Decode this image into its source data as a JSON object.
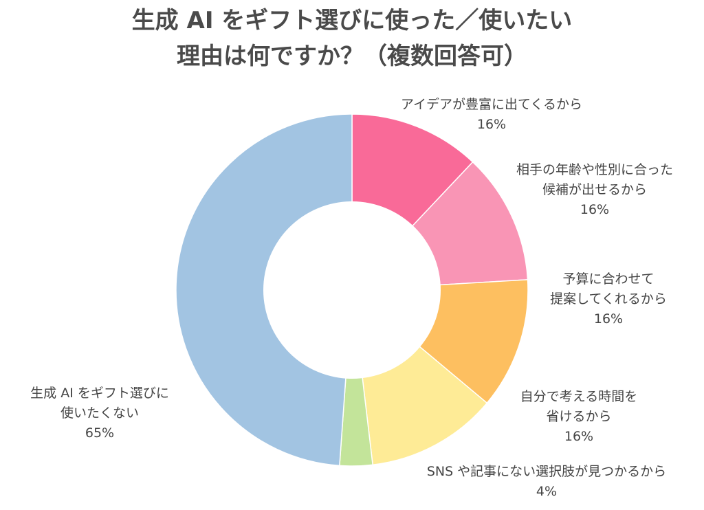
{
  "title": {
    "line1": "生成 AI をギフト選びに使った／使いたい",
    "line2": "理由は何ですか？（複数回答可）"
  },
  "chart_data": {
    "type": "pie",
    "donut": true,
    "slices": [
      {
        "label_lines": [
          "アイデアが豊富に出てくるから"
        ],
        "value": 16,
        "value_text": "16%",
        "color": "#f96a98"
      },
      {
        "label_lines": [
          "相手の年齢や性別に合った",
          "候補が出せるから"
        ],
        "value": 16,
        "value_text": "16%",
        "color": "#f995b5"
      },
      {
        "label_lines": [
          "予算に合わせて",
          "提案してくれるから"
        ],
        "value": 16,
        "value_text": "16%",
        "color": "#fdbf60"
      },
      {
        "label_lines": [
          "自分で考える時間を",
          "省けるから"
        ],
        "value": 16,
        "value_text": "16%",
        "color": "#feeb96"
      },
      {
        "label_lines": [
          "SNS や記事にない選択肢が見つかるから"
        ],
        "value": 4,
        "value_text": "4%",
        "color": "#c3e49a"
      },
      {
        "label_lines": [
          "生成 AI をギフト選びに",
          "使いたくない"
        ],
        "value": 65,
        "value_text": "65%",
        "color": "#a2c4e2"
      }
    ]
  }
}
